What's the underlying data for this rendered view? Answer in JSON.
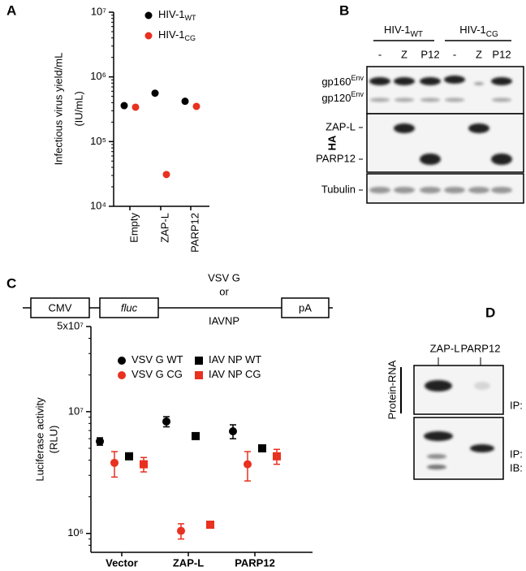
{
  "panel_labels": [
    "A",
    "B",
    "C",
    "D"
  ],
  "chart_data": [
    {
      "type": "scatter",
      "categories": [
        "Empty",
        "ZAP-L",
        "PARP12"
      ],
      "y_label": "Infectious virus yield/mL",
      "y_unit": "(IU/mL)",
      "log_y": true,
      "ylim": [
        10000,
        10000000
      ],
      "yticks": [
        {
          "value": 10000,
          "label": "10⁴"
        },
        {
          "value": 100000,
          "label": "10⁵"
        },
        {
          "value": 1000000,
          "label": "10⁶"
        },
        {
          "value": 10000000,
          "label": "10⁷"
        }
      ],
      "series": [
        {
          "name": "HIV-1",
          "name_sub": "WT",
          "color": "#000000",
          "marker": "circle",
          "values": [
            360000,
            560000,
            420000
          ]
        },
        {
          "name": "HIV-1",
          "name_sub": "CG",
          "color": "#e8311f",
          "marker": "circle",
          "values": [
            340000,
            31000,
            350000
          ]
        }
      ]
    },
    {
      "type": "scatter",
      "categories": [
        "Vector",
        "ZAP-L",
        "PARP12"
      ],
      "y_label": "Luciferase activity",
      "y_unit": "(RLU)",
      "log_y": true,
      "ylim": [
        700000,
        50000000
      ],
      "yticks": [
        {
          "value": 1000000,
          "label": "10⁶"
        },
        {
          "value": 10000000,
          "label": "10⁷"
        },
        {
          "value": 50000000,
          "label": "5x10⁷"
        }
      ],
      "series": [
        {
          "name": "VSV G WT",
          "color": "#000000",
          "marker": "circle",
          "values": [
            5700000,
            8300000,
            6900000
          ],
          "errors": [
            400000,
            800000,
            900000
          ]
        },
        {
          "name": "VSV G CG",
          "color": "#e8311f",
          "marker": "circle",
          "values": [
            3800000,
            1050000,
            3700000
          ],
          "errors": [
            900000,
            150000,
            1000000
          ]
        },
        {
          "name": "IAV NP WT",
          "color": "#000000",
          "marker": "square",
          "values": [
            4300000,
            6300000,
            5000000
          ],
          "errors": [
            200000,
            200000,
            200000
          ]
        },
        {
          "name": "IAV NP CG",
          "color": "#e8311f",
          "marker": "square",
          "values": [
            3700000,
            1180000,
            4300000
          ],
          "errors": [
            500000,
            50000,
            600000
          ]
        }
      ]
    }
  ],
  "blot_b": {
    "groups": [
      {
        "name": "HIV-1",
        "sub": "WT"
      },
      {
        "name": "HIV-1",
        "sub": "CG"
      }
    ],
    "lanes": [
      "-",
      "Z",
      "P12",
      "-",
      "Z",
      "P12"
    ],
    "rows": [
      {
        "label": "gp160",
        "sup": "Env"
      },
      {
        "label": "gp120",
        "sup": "Env"
      },
      {
        "label": "ZAP-L"
      },
      {
        "label": "PARP12"
      },
      {
        "label": "Tubulin"
      }
    ],
    "side_label": "HA"
  },
  "construct": {
    "segments": [
      "CMV",
      "fluc"
    ],
    "insert": [
      "VSV G",
      "or",
      "IAVNP"
    ],
    "end": "pA"
  },
  "blot_d": {
    "lanes": [
      "ZAP-L",
      "PARP12"
    ],
    "side_label": "Protein-RNA",
    "top_label": "IP: HA",
    "bottom_label": [
      "IP: HA",
      "IB: HA"
    ]
  }
}
